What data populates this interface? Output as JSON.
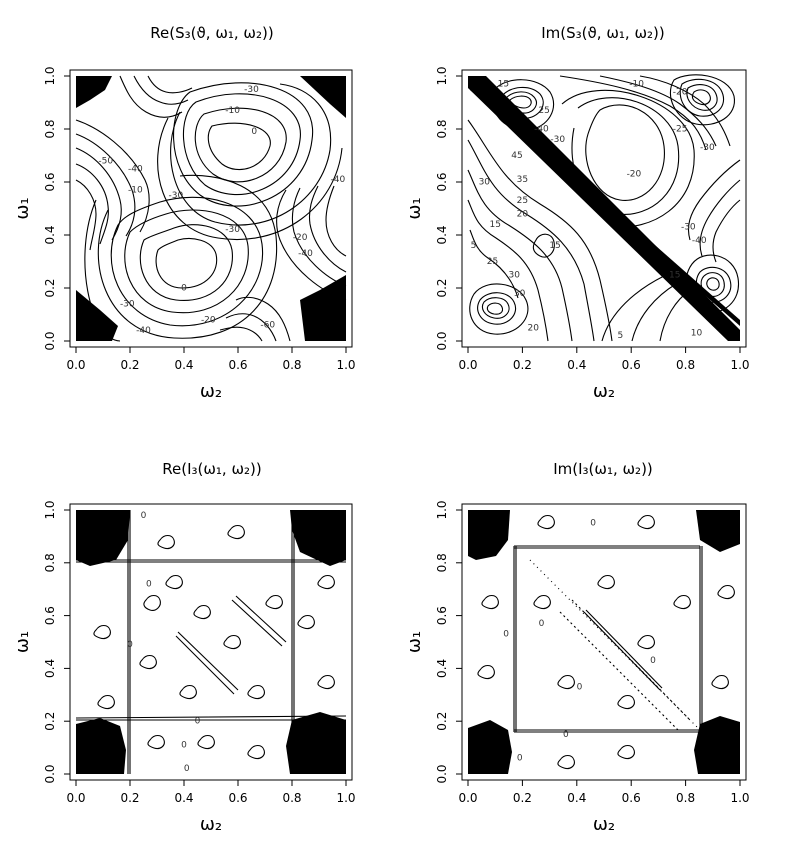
{
  "chart_data": [
    {
      "type": "contour",
      "title": "Re(S₃(ϑ, ω₁, ω₂))",
      "xlabel": "ω₂",
      "ylabel": "ω₁",
      "xlim": [
        0,
        1
      ],
      "ylim": [
        0,
        1
      ],
      "xticks": [
        "0.0",
        "0.2",
        "0.4",
        "0.6",
        "0.8",
        "1.0"
      ],
      "yticks": [
        "0.0",
        "0.2",
        "0.4",
        "0.6",
        "0.8",
        "1.0"
      ],
      "grid": false,
      "contour_labels": [
        {
          "text": "0",
          "x": 0.66,
          "y": 0.79
        },
        {
          "text": "-10",
          "x": 0.58,
          "y": 0.87
        },
        {
          "text": "-30",
          "x": 0.65,
          "y": 0.95
        },
        {
          "text": "-10",
          "x": 0.22,
          "y": 0.57
        },
        {
          "text": "-30",
          "x": 0.37,
          "y": 0.55
        },
        {
          "text": "-40",
          "x": 0.22,
          "y": 0.65
        },
        {
          "text": "-50",
          "x": 0.11,
          "y": 0.68
        },
        {
          "text": "-30",
          "x": 0.58,
          "y": 0.42
        },
        {
          "text": "-20",
          "x": 0.83,
          "y": 0.39
        },
        {
          "text": "-40",
          "x": 0.85,
          "y": 0.33
        },
        {
          "text": "0",
          "x": 0.4,
          "y": 0.2
        },
        {
          "text": "-20",
          "x": 0.49,
          "y": 0.08
        },
        {
          "text": "-30",
          "x": 0.19,
          "y": 0.14
        },
        {
          "text": "-40",
          "x": 0.25,
          "y": 0.04
        },
        {
          "text": "-60",
          "x": 0.71,
          "y": 0.06
        },
        {
          "text": "-40",
          "x": 0.97,
          "y": 0.61
        }
      ]
    },
    {
      "type": "contour",
      "title": "Im(S₃(ϑ, ω₁, ω₂))",
      "xlabel": "ω₂",
      "ylabel": "ω₁",
      "xlim": [
        0,
        1
      ],
      "ylim": [
        0,
        1
      ],
      "xticks": [
        "0.0",
        "0.2",
        "0.4",
        "0.6",
        "0.8",
        "1.0"
      ],
      "yticks": [
        "0.0",
        "0.2",
        "0.4",
        "0.6",
        "0.8",
        "1.0"
      ],
      "grid": false,
      "contour_labels": [
        {
          "text": "15",
          "x": 0.13,
          "y": 0.97
        },
        {
          "text": "-10",
          "x": 0.62,
          "y": 0.97
        },
        {
          "text": "-20",
          "x": 0.78,
          "y": 0.94
        },
        {
          "text": "25",
          "x": 0.28,
          "y": 0.87
        },
        {
          "text": "-40",
          "x": 0.27,
          "y": 0.8
        },
        {
          "text": "-30",
          "x": 0.33,
          "y": 0.76
        },
        {
          "text": "-25",
          "x": 0.78,
          "y": 0.8
        },
        {
          "text": "45",
          "x": 0.18,
          "y": 0.7
        },
        {
          "text": "-30",
          "x": 0.88,
          "y": 0.73
        },
        {
          "text": "30",
          "x": 0.06,
          "y": 0.6
        },
        {
          "text": "35",
          "x": 0.2,
          "y": 0.61
        },
        {
          "text": "25",
          "x": 0.2,
          "y": 0.53
        },
        {
          "text": "20",
          "x": 0.2,
          "y": 0.48
        },
        {
          "text": "-20",
          "x": 0.61,
          "y": 0.63
        },
        {
          "text": "15",
          "x": 0.1,
          "y": 0.44
        },
        {
          "text": "15",
          "x": 0.32,
          "y": 0.36
        },
        {
          "text": "5",
          "x": 0.02,
          "y": 0.36
        },
        {
          "text": "-30",
          "x": 0.81,
          "y": 0.43
        },
        {
          "text": "-40",
          "x": 0.85,
          "y": 0.38
        },
        {
          "text": "25",
          "x": 0.09,
          "y": 0.3
        },
        {
          "text": "30",
          "x": 0.17,
          "y": 0.25
        },
        {
          "text": "15",
          "x": 0.76,
          "y": 0.25
        },
        {
          "text": "30",
          "x": 0.19,
          "y": 0.18
        },
        {
          "text": "20",
          "x": 0.24,
          "y": 0.05
        },
        {
          "text": "5",
          "x": 0.56,
          "y": 0.02
        },
        {
          "text": "10",
          "x": 0.84,
          "y": 0.03
        }
      ]
    },
    {
      "type": "contour",
      "title": "Re(I₃(ω₁, ω₂))",
      "xlabel": "ω₂",
      "ylabel": "ω₁",
      "xlim": [
        0,
        1
      ],
      "ylim": [
        0,
        1
      ],
      "xticks": [
        "0.0",
        "0.2",
        "0.4",
        "0.6",
        "0.8",
        "1.0"
      ],
      "yticks": [
        "0.0",
        "0.2",
        "0.4",
        "0.6",
        "0.8",
        "1.0"
      ],
      "grid": false,
      "contour_labels": [
        {
          "text": "0",
          "x": 0.25,
          "y": 0.98
        },
        {
          "text": "0",
          "x": 0.27,
          "y": 0.72
        },
        {
          "text": "0",
          "x": 0.2,
          "y": 0.49
        },
        {
          "text": "0",
          "x": 0.45,
          "y": 0.2
        },
        {
          "text": "0",
          "x": 0.4,
          "y": 0.11
        },
        {
          "text": "0",
          "x": 0.41,
          "y": 0.02
        }
      ]
    },
    {
      "type": "contour",
      "title": "Im(I₃(ω₁, ω₂))",
      "xlabel": "ω₂",
      "ylabel": "ω₁",
      "xlim": [
        0,
        1
      ],
      "ylim": [
        0,
        1
      ],
      "xticks": [
        "0.0",
        "0.2",
        "0.4",
        "0.6",
        "0.8",
        "1.0"
      ],
      "yticks": [
        "0.0",
        "0.2",
        "0.4",
        "0.6",
        "0.8",
        "1.0"
      ],
      "grid": false,
      "contour_labels": [
        {
          "text": "0",
          "x": 0.46,
          "y": 0.95
        },
        {
          "text": "0",
          "x": 0.27,
          "y": 0.57
        },
        {
          "text": "0",
          "x": 0.14,
          "y": 0.53
        },
        {
          "text": "0",
          "x": 0.41,
          "y": 0.33
        },
        {
          "text": "0",
          "x": 0.68,
          "y": 0.43
        },
        {
          "text": "0",
          "x": 0.36,
          "y": 0.15
        },
        {
          "text": "0",
          "x": 0.19,
          "y": 0.06
        }
      ]
    }
  ]
}
